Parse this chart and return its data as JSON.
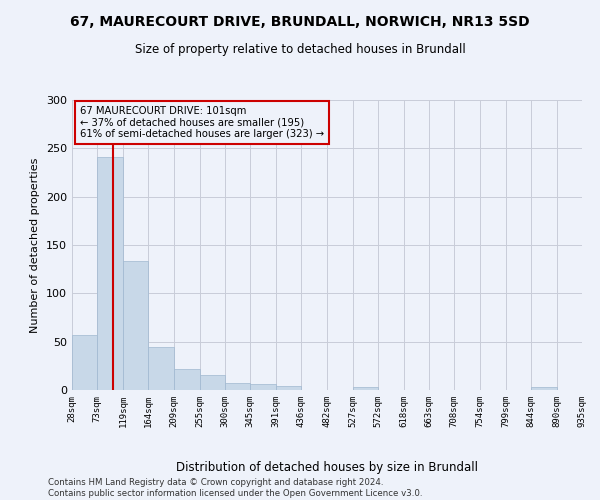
{
  "title1": "67, MAURECOURT DRIVE, BRUNDALL, NORWICH, NR13 5SD",
  "title2": "Size of property relative to detached houses in Brundall",
  "xlabel": "Distribution of detached houses by size in Brundall",
  "ylabel": "Number of detached properties",
  "footer1": "Contains HM Land Registry data © Crown copyright and database right 2024.",
  "footer2": "Contains public sector information licensed under the Open Government Licence v3.0.",
  "annotation_line1": "67 MAURECOURT DRIVE: 101sqm",
  "annotation_line2": "← 37% of detached houses are smaller (195)",
  "annotation_line3": "61% of semi-detached houses are larger (323) →",
  "property_size": 101,
  "bin_edges": [
    28,
    73,
    119,
    164,
    209,
    255,
    300,
    345,
    391,
    436,
    482,
    527,
    572,
    618,
    663,
    708,
    754,
    799,
    844,
    890,
    935
  ],
  "bar_heights": [
    57,
    241,
    133,
    44,
    22,
    16,
    7,
    6,
    4,
    0,
    0,
    3,
    0,
    0,
    0,
    0,
    0,
    0,
    3,
    0
  ],
  "bar_color": "#c8d8e8",
  "bar_edge_color": "#a0b8d0",
  "red_line_color": "#cc0000",
  "annotation_box_color": "#cc0000",
  "grid_color": "#c8ccd8",
  "background_color": "#eef2fa",
  "ylim": [
    0,
    300
  ],
  "yticks": [
    0,
    50,
    100,
    150,
    200,
    250,
    300
  ]
}
